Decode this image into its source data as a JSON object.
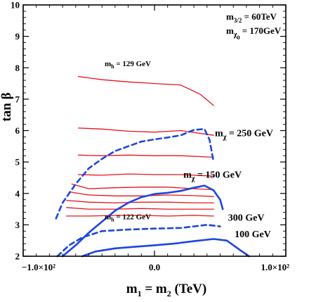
{
  "chart_data": {
    "type": "line",
    "title": "",
    "xlabel": "m1 = m2 (TeV)",
    "ylabel": "tan β",
    "xlim": [
      -100,
      100
    ],
    "ylim": [
      2,
      10
    ],
    "x_ticks": [
      -100,
      0,
      100
    ],
    "x_tick_labels": [
      "−1.0×10²",
      "0.0",
      "1.0×10²"
    ],
    "y_ticks": [
      2,
      3,
      4,
      5,
      6,
      7,
      8,
      9,
      10
    ],
    "grid": false,
    "legend": "none",
    "colors": {
      "higgs": "#e8141e",
      "neutralino": "#1e46dc",
      "frame": "#000000"
    },
    "parameters_box": {
      "m32_label": "m3/2 = 60TeV",
      "mchi0_label": "mχ0 = 170GeV"
    },
    "series": [
      {
        "group": "higgs",
        "style": "solid",
        "x": [
          -58,
          -40,
          -20,
          0,
          20,
          35,
          45
        ],
        "y": [
          7.72,
          7.62,
          7.55,
          7.5,
          7.45,
          7.15,
          6.8
        ]
      },
      {
        "group": "higgs",
        "style": "solid",
        "x": [
          -58,
          -40,
          -20,
          0,
          20,
          45
        ],
        "y": [
          6.08,
          6.05,
          5.98,
          5.95,
          6.0,
          5.85
        ]
      },
      {
        "group": "higgs",
        "style": "solid",
        "x": [
          -58,
          -40,
          -20,
          0,
          20,
          45
        ],
        "y": [
          5.22,
          5.2,
          5.22,
          5.2,
          5.2,
          5.15
        ]
      },
      {
        "group": "higgs",
        "style": "solid",
        "x": [
          -58,
          -40,
          -20,
          0,
          20,
          45
        ],
        "y": [
          4.6,
          4.58,
          4.62,
          4.6,
          4.6,
          4.55
        ]
      },
      {
        "group": "higgs",
        "style": "solid",
        "x": [
          -63,
          -50,
          -30,
          -10,
          10,
          30,
          45
        ],
        "y": [
          4.3,
          4.15,
          4.18,
          4.2,
          4.2,
          4.15,
          4.12
        ]
      },
      {
        "group": "higgs",
        "style": "solid",
        "x": [
          -65,
          -50,
          -30,
          -10,
          10,
          30,
          45
        ],
        "y": [
          4.05,
          3.95,
          3.92,
          3.92,
          3.95,
          3.93,
          3.9
        ]
      },
      {
        "group": "higgs",
        "style": "solid",
        "x": [
          -67,
          -50,
          -30,
          -10,
          10,
          30,
          45
        ],
        "y": [
          3.78,
          3.72,
          3.7,
          3.72,
          3.72,
          3.7,
          3.7
        ]
      },
      {
        "group": "higgs",
        "style": "solid",
        "x": [
          -67,
          -50,
          -30,
          -10,
          10,
          30,
          45
        ],
        "y": [
          3.55,
          3.5,
          3.5,
          3.52,
          3.5,
          3.5,
          3.5
        ]
      },
      {
        "group": "higgs",
        "style": "solid",
        "x": [
          -67,
          -50,
          -30,
          -10,
          10,
          30,
          45
        ],
        "y": [
          3.28,
          3.28,
          3.3,
          3.3,
          3.28,
          3.3,
          3.28
        ]
      },
      {
        "group": "neutralino",
        "style": "dashed",
        "x": [
          -75,
          -70,
          -60,
          -50,
          -40,
          -30,
          -20,
          -10,
          0,
          10,
          20,
          30,
          38,
          42,
          45
        ],
        "y": [
          3.2,
          3.7,
          4.3,
          4.8,
          5.1,
          5.35,
          5.5,
          5.65,
          5.72,
          5.78,
          5.85,
          6.02,
          6.05,
          5.7,
          5.0
        ]
      },
      {
        "group": "neutralino",
        "style": "dashed",
        "x": [
          -74,
          -65,
          -55,
          -40,
          -20,
          0,
          20,
          40,
          50
        ],
        "y": [
          2,
          2.35,
          2.6,
          2.8,
          2.85,
          2.88,
          2.9,
          3.0,
          2.95
        ]
      },
      {
        "group": "neutralino",
        "style": "solid",
        "x": [
          -70,
          -60,
          -50,
          -40,
          -30,
          -20,
          -10,
          0,
          10,
          20,
          30,
          38,
          45,
          50,
          52
        ],
        "y": [
          2,
          2.35,
          2.75,
          3.1,
          3.45,
          3.7,
          3.88,
          3.98,
          4.02,
          4.08,
          4.18,
          4.25,
          4.1,
          3.8,
          3.5
        ]
      },
      {
        "group": "neutralino",
        "style": "solid",
        "x": [
          -55,
          -45,
          -30,
          -15,
          0,
          15,
          30,
          45,
          55,
          65,
          72
        ],
        "y": [
          2,
          2.15,
          2.25,
          2.3,
          2.35,
          2.4,
          2.48,
          2.55,
          2.5,
          2.2,
          2
        ]
      }
    ],
    "annotations": [
      {
        "text": "mh = 129 GeV",
        "x": -38,
        "y": 8.05
      },
      {
        "text": "mχ = 250 GeV",
        "x": 46,
        "y": 5.82
      },
      {
        "text": "mχ = 150 GeV",
        "x": 22,
        "y": 4.5
      },
      {
        "text": "mh = 122 GeV",
        "x": -38,
        "y": 3.18
      },
      {
        "text": "300 GeV",
        "x": 56,
        "y": 3.13
      },
      {
        "text": "100 GeV",
        "x": 61,
        "y": 2.6
      }
    ]
  }
}
